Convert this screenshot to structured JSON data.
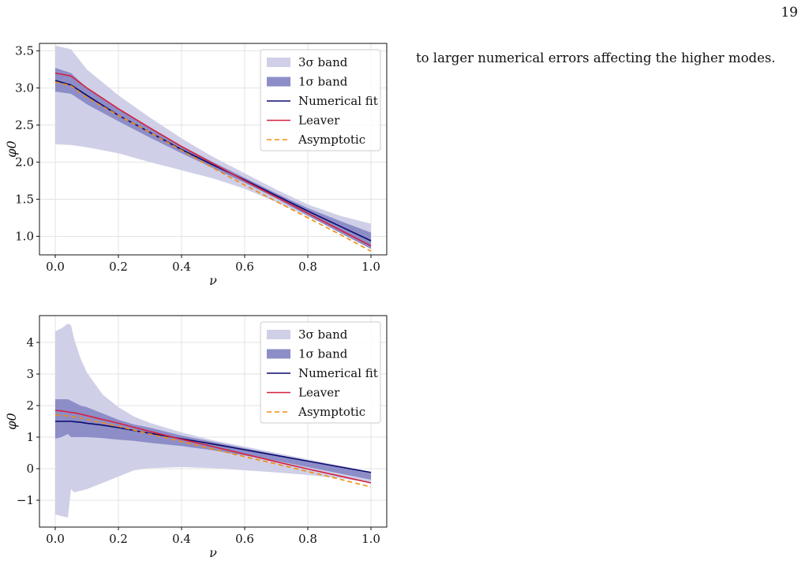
{
  "page": {
    "number": "19",
    "text": "to larger numerical errors affecting the higher modes."
  },
  "colors": {
    "band3": "#cfcfe7",
    "band1": "#8d8dc8",
    "numerical": "#0b0b6e",
    "leaver": "#d6203f",
    "asymptotic": "#f28c0e"
  },
  "chart_data": [
    {
      "type": "area",
      "xlabel": "ν",
      "ylabel": "φ0",
      "xlim": [
        -0.05,
        1.05
      ],
      "ylim": [
        0.75,
        3.6
      ],
      "xticks": [
        0.0,
        0.2,
        0.4,
        0.6,
        0.8,
        1.0
      ],
      "xtick_labels": [
        "0.0",
        "0.2",
        "0.4",
        "0.6",
        "0.8",
        "1.0"
      ],
      "yticks": [
        1.0,
        1.5,
        2.0,
        2.5,
        3.0,
        3.5
      ],
      "ytick_labels": [
        "1.0",
        "1.5",
        "2.0",
        "2.5",
        "3.0",
        "3.5"
      ],
      "grid": true,
      "legend_position": "top-right",
      "legend": [
        "3σ band",
        "1σ band",
        "Numerical fit",
        "Leaver",
        "Asymptotic"
      ],
      "x": [
        0.0,
        0.05,
        0.1,
        0.2,
        0.3,
        0.4,
        0.5,
        0.6,
        0.7,
        0.8,
        0.9,
        1.0
      ],
      "band3_upper": [
        3.57,
        3.52,
        3.25,
        2.9,
        2.6,
        2.32,
        2.07,
        1.85,
        1.63,
        1.43,
        1.28,
        1.17
      ],
      "band3_lower": [
        2.24,
        2.23,
        2.2,
        2.12,
        2.0,
        1.89,
        1.78,
        1.64,
        1.46,
        1.27,
        1.07,
        0.87
      ],
      "band1_upper": [
        3.27,
        3.2,
        3.0,
        2.72,
        2.47,
        2.22,
        2.0,
        1.79,
        1.58,
        1.38,
        1.21,
        1.05
      ],
      "band1_lower": [
        2.95,
        2.92,
        2.78,
        2.55,
        2.33,
        2.12,
        1.92,
        1.72,
        1.51,
        1.28,
        1.05,
        0.83
      ],
      "series": [
        {
          "name": "Numerical fit",
          "values": [
            3.1,
            3.04,
            2.9,
            2.63,
            2.4,
            2.17,
            1.96,
            1.76,
            1.55,
            1.34,
            1.14,
            0.94
          ]
        },
        {
          "name": "Leaver",
          "values": [
            3.2,
            3.16,
            3.0,
            2.72,
            2.46,
            2.21,
            1.98,
            1.75,
            1.53,
            1.31,
            1.09,
            0.87
          ]
        },
        {
          "name": "Asymptotic",
          "values": [
            3.08,
            3.03,
            2.87,
            2.63,
            2.4,
            2.16,
            1.92,
            1.69,
            1.47,
            1.25,
            1.03,
            0.8
          ]
        }
      ]
    },
    {
      "type": "area",
      "xlabel": "ν",
      "ylabel": "φ0",
      "xlim": [
        -0.05,
        1.05
      ],
      "ylim": [
        -1.85,
        4.85
      ],
      "xticks": [
        0.0,
        0.2,
        0.4,
        0.6,
        0.8,
        1.0
      ],
      "xtick_labels": [
        "0.0",
        "0.2",
        "0.4",
        "0.6",
        "0.8",
        "1.0"
      ],
      "yticks": [
        -1,
        0,
        1,
        2,
        3,
        4
      ],
      "ytick_labels": [
        "−1",
        "0",
        "1",
        "2",
        "3",
        "4"
      ],
      "grid": true,
      "legend_position": "top-right",
      "legend": [
        "3σ band",
        "1σ band",
        "Numerical fit",
        "Leaver",
        "Asymptotic"
      ],
      "x": [
        0.0,
        0.02,
        0.04,
        0.05,
        0.06,
        0.08,
        0.1,
        0.15,
        0.2,
        0.25,
        0.3,
        0.4,
        0.5,
        0.6,
        0.7,
        0.8,
        0.9,
        1.0
      ],
      "band3_upper": [
        4.35,
        4.45,
        4.6,
        4.55,
        4.1,
        3.5,
        3.05,
        2.35,
        1.95,
        1.65,
        1.45,
        1.15,
        0.9,
        0.7,
        0.5,
        0.3,
        0.1,
        -0.1
      ],
      "band3_lower": [
        -1.45,
        -1.5,
        -1.55,
        -0.65,
        -0.75,
        -0.7,
        -0.65,
        -0.45,
        -0.25,
        -0.05,
        0.02,
        0.05,
        0.02,
        -0.05,
        -0.12,
        -0.2,
        -0.3,
        -0.45
      ],
      "band1_upper": [
        2.2,
        2.2,
        2.2,
        2.15,
        2.1,
        2.0,
        1.95,
        1.75,
        1.55,
        1.4,
        1.3,
        1.05,
        0.85,
        0.65,
        0.45,
        0.25,
        0.05,
        -0.15
      ],
      "band1_lower": [
        0.95,
        1.0,
        1.1,
        1.0,
        1.0,
        1.0,
        1.0,
        0.97,
        0.92,
        0.88,
        0.82,
        0.72,
        0.58,
        0.42,
        0.25,
        0.05,
        -0.15,
        -0.35
      ],
      "series": [
        {
          "name": "Numerical fit",
          "values": [
            1.5,
            1.5,
            1.5,
            1.5,
            1.49,
            1.47,
            1.44,
            1.38,
            1.3,
            1.21,
            1.12,
            0.95,
            0.78,
            0.6,
            0.42,
            0.24,
            0.06,
            -0.12
          ]
        },
        {
          "name": "Leaver",
          "values": [
            1.85,
            1.83,
            1.8,
            1.78,
            1.77,
            1.73,
            1.68,
            1.56,
            1.44,
            1.31,
            1.18,
            0.93,
            0.7,
            0.46,
            0.22,
            -0.01,
            -0.23,
            -0.45
          ]
        },
        {
          "name": "Asymptotic",
          "values": [
            1.7,
            1.69,
            1.67,
            1.66,
            1.64,
            1.61,
            1.56,
            1.45,
            1.34,
            1.22,
            1.1,
            0.86,
            0.62,
            0.38,
            0.15,
            -0.09,
            -0.33,
            -0.58
          ]
        }
      ]
    }
  ]
}
